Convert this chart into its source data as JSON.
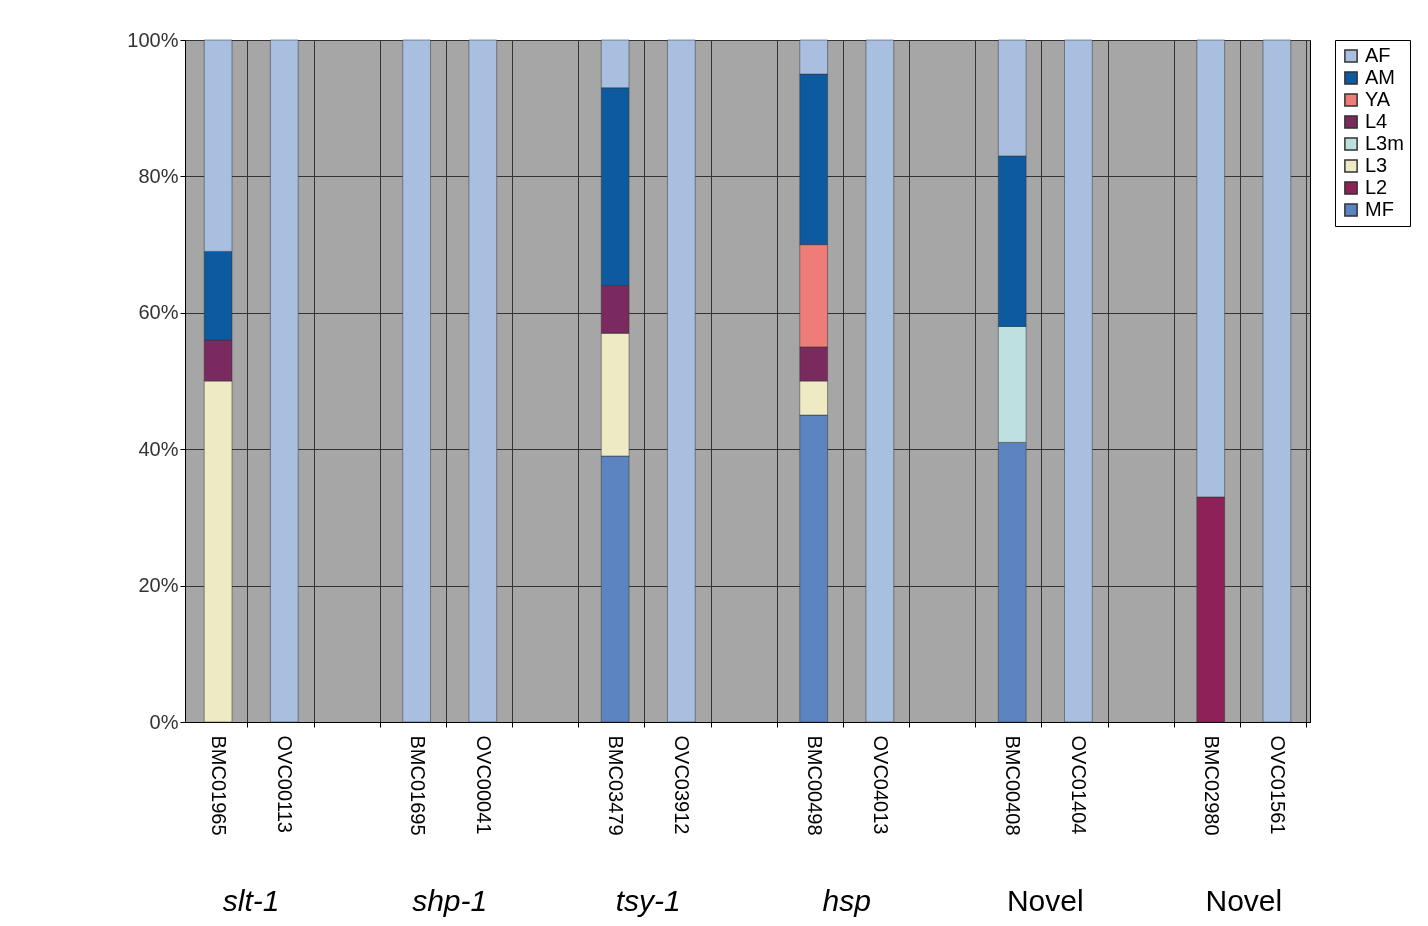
{
  "chart_data": {
    "type": "bar",
    "stacked": true,
    "categories": [
      "BMC01965",
      "OVC00113",
      null,
      "BMC01695",
      "OVC00041",
      null,
      "BMC03479",
      "OVC03912",
      null,
      "BMC00498",
      "OVC04013",
      null,
      "BMC00408",
      "OVC01404",
      null,
      "BMC02980",
      "OVC01561"
    ],
    "series": [
      {
        "name": "MF",
        "color": "#5b84c0",
        "values": [
          null,
          null,
          null,
          null,
          null,
          null,
          39,
          null,
          null,
          45,
          null,
          null,
          41,
          null,
          null,
          null,
          null
        ]
      },
      {
        "name": "L2",
        "color": "#8c2257",
        "values": [
          null,
          null,
          null,
          null,
          null,
          null,
          null,
          null,
          null,
          null,
          null,
          null,
          null,
          null,
          null,
          33,
          null
        ]
      },
      {
        "name": "L3",
        "color": "#eeeac4",
        "values": [
          50,
          null,
          null,
          null,
          null,
          null,
          18,
          null,
          null,
          5,
          null,
          null,
          null,
          null,
          null,
          null,
          null
        ]
      },
      {
        "name": "L3m",
        "color": "#bfe0e0",
        "values": [
          null,
          null,
          null,
          null,
          null,
          null,
          null,
          null,
          null,
          null,
          null,
          null,
          17,
          null,
          null,
          null,
          null
        ]
      },
      {
        "name": "L4",
        "color": "#7a2a5e",
        "values": [
          6,
          null,
          null,
          null,
          null,
          null,
          7,
          null,
          null,
          5,
          null,
          null,
          null,
          null,
          null,
          null,
          null
        ]
      },
      {
        "name": "YA",
        "color": "#ee7d7a",
        "values": [
          null,
          null,
          null,
          null,
          null,
          null,
          null,
          null,
          null,
          15,
          null,
          null,
          null,
          null,
          null,
          null,
          null
        ]
      },
      {
        "name": "AM",
        "color": "#0d5aa0",
        "values": [
          13,
          null,
          null,
          null,
          null,
          null,
          29,
          null,
          null,
          25,
          null,
          null,
          25,
          null,
          null,
          null,
          null
        ]
      },
      {
        "name": "AF",
        "color": "#a9bfe0",
        "values": [
          31,
          100,
          null,
          100,
          100,
          null,
          7,
          100,
          null,
          5,
          100,
          null,
          17,
          100,
          null,
          67,
          100
        ]
      }
    ],
    "ylim": [
      0,
      100
    ],
    "yticks": [
      {
        "value": 0,
        "label": "0%"
      },
      {
        "value": 20,
        "label": "20%"
      },
      {
        "value": 40,
        "label": "40%"
      },
      {
        "value": 60,
        "label": "60%"
      },
      {
        "value": 80,
        "label": "80%"
      },
      {
        "value": 100,
        "label": "100%"
      }
    ],
    "grid": true,
    "legend": "right",
    "annotations": [
      "slt-1",
      "shp-1",
      "tsy-1",
      "hsp",
      "Novel",
      "Novel"
    ]
  }
}
